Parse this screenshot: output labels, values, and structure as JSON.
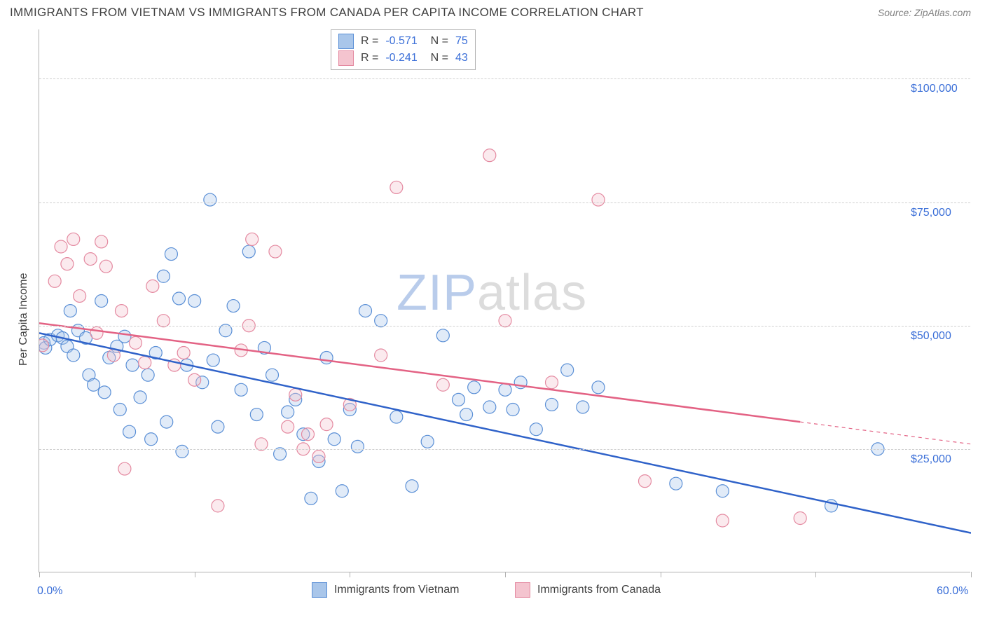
{
  "header": {
    "title": "IMMIGRANTS FROM VIETNAM VS IMMIGRANTS FROM CANADA PER CAPITA INCOME CORRELATION CHART",
    "source": "Source: ZipAtlas.com"
  },
  "chart": {
    "type": "scatter",
    "ylabel": "Per Capita Income",
    "xlim": [
      0,
      60
    ],
    "ylim": [
      0,
      110000
    ],
    "xtick_positions": [
      0,
      10,
      20,
      30,
      40,
      50,
      60
    ],
    "xtick_labels_shown": {
      "0": "0.0%",
      "60": "60.0%"
    },
    "ytick_positions": [
      25000,
      50000,
      75000,
      100000
    ],
    "ytick_labels": [
      "$25,000",
      "$50,000",
      "$75,000",
      "$100,000"
    ],
    "background_color": "#ffffff",
    "grid_color": "#d0d0d0",
    "axis_color": "#b0b0b0",
    "text_color": "#404040",
    "tick_label_color": "#3b6fd8",
    "marker_radius": 9,
    "marker_stroke_width": 1.2,
    "marker_fill_opacity": 0.35,
    "trend_line_width": 2.5,
    "watermark": {
      "text_a": "ZIP",
      "text_b": "atlas",
      "color_a": "#b9cceb",
      "color_b": "#dcdcdc",
      "fontsize": 72
    },
    "series": [
      {
        "name": "Immigrants from Vietnam",
        "color_fill": "#a9c6ea",
        "color_stroke": "#5a8fd6",
        "trend_color": "#2f62c9",
        "R": "-0.571",
        "N": "75",
        "trend": {
          "x1": 0,
          "y1": 48500,
          "x2": 60,
          "y2": 8000,
          "solid_until_x": 60
        },
        "points": [
          [
            0.3,
            46500
          ],
          [
            0.4,
            45500
          ],
          [
            0.7,
            47200
          ],
          [
            1.2,
            48000
          ],
          [
            1.5,
            47500
          ],
          [
            1.8,
            45800
          ],
          [
            2.0,
            53000
          ],
          [
            2.2,
            44000
          ],
          [
            2.5,
            49000
          ],
          [
            3.0,
            47500
          ],
          [
            3.2,
            40000
          ],
          [
            3.5,
            38000
          ],
          [
            4.0,
            55000
          ],
          [
            4.2,
            36500
          ],
          [
            4.5,
            43500
          ],
          [
            5.0,
            45800
          ],
          [
            5.2,
            33000
          ],
          [
            5.5,
            47800
          ],
          [
            5.8,
            28500
          ],
          [
            6.0,
            42000
          ],
          [
            6.5,
            35500
          ],
          [
            7.0,
            40000
          ],
          [
            7.2,
            27000
          ],
          [
            7.5,
            44500
          ],
          [
            8.0,
            60000
          ],
          [
            8.2,
            30500
          ],
          [
            8.5,
            64500
          ],
          [
            9.0,
            55500
          ],
          [
            9.2,
            24500
          ],
          [
            9.5,
            42000
          ],
          [
            10.0,
            55000
          ],
          [
            10.5,
            38500
          ],
          [
            11.0,
            75500
          ],
          [
            11.2,
            43000
          ],
          [
            11.5,
            29500
          ],
          [
            12.0,
            49000
          ],
          [
            12.5,
            54000
          ],
          [
            13.0,
            37000
          ],
          [
            13.5,
            65000
          ],
          [
            14.0,
            32000
          ],
          [
            14.5,
            45500
          ],
          [
            15.0,
            40000
          ],
          [
            15.5,
            24000
          ],
          [
            16.0,
            32500
          ],
          [
            16.5,
            35000
          ],
          [
            17.0,
            28000
          ],
          [
            17.5,
            15000
          ],
          [
            18.0,
            22500
          ],
          [
            18.5,
            43500
          ],
          [
            19.0,
            27000
          ],
          [
            19.5,
            16500
          ],
          [
            20.0,
            33000
          ],
          [
            20.5,
            25500
          ],
          [
            21.0,
            53000
          ],
          [
            22.0,
            51000
          ],
          [
            23.0,
            31500
          ],
          [
            24.0,
            17500
          ],
          [
            25.0,
            26500
          ],
          [
            26.0,
            48000
          ],
          [
            27.0,
            35000
          ],
          [
            27.5,
            32000
          ],
          [
            28.0,
            37500
          ],
          [
            29.0,
            33500
          ],
          [
            30.0,
            37000
          ],
          [
            30.5,
            33000
          ],
          [
            31.0,
            38500
          ],
          [
            32.0,
            29000
          ],
          [
            33.0,
            34000
          ],
          [
            34.0,
            41000
          ],
          [
            35.0,
            33500
          ],
          [
            36.0,
            37500
          ],
          [
            41.0,
            18000
          ],
          [
            44.0,
            16500
          ],
          [
            51.0,
            13500
          ],
          [
            54.0,
            25000
          ]
        ]
      },
      {
        "name": "Immigrants from Canada",
        "color_fill": "#f4c4cf",
        "color_stroke": "#e489a0",
        "trend_color": "#e36284",
        "R": "-0.241",
        "N": "43",
        "trend": {
          "x1": 0,
          "y1": 50500,
          "x2": 60,
          "y2": 26000,
          "solid_until_x": 49
        },
        "points": [
          [
            0.2,
            46000
          ],
          [
            1.0,
            59000
          ],
          [
            1.4,
            66000
          ],
          [
            1.8,
            62500
          ],
          [
            2.2,
            67500
          ],
          [
            2.6,
            56000
          ],
          [
            3.3,
            63500
          ],
          [
            3.7,
            48500
          ],
          [
            4.0,
            67000
          ],
          [
            4.3,
            62000
          ],
          [
            4.8,
            44000
          ],
          [
            5.3,
            53000
          ],
          [
            5.5,
            21000
          ],
          [
            6.2,
            46500
          ],
          [
            6.8,
            42500
          ],
          [
            7.3,
            58000
          ],
          [
            8.0,
            51000
          ],
          [
            8.7,
            42000
          ],
          [
            9.3,
            44500
          ],
          [
            10.0,
            39000
          ],
          [
            11.5,
            13500
          ],
          [
            13.0,
            45000
          ],
          [
            13.5,
            50000
          ],
          [
            13.7,
            67500
          ],
          [
            14.3,
            26000
          ],
          [
            15.2,
            65000
          ],
          [
            16.0,
            29500
          ],
          [
            16.5,
            36000
          ],
          [
            17.0,
            25000
          ],
          [
            17.3,
            28000
          ],
          [
            18.0,
            23500
          ],
          [
            18.5,
            30000
          ],
          [
            20.0,
            34000
          ],
          [
            22.0,
            44000
          ],
          [
            23.0,
            78000
          ],
          [
            26.0,
            38000
          ],
          [
            29.0,
            84500
          ],
          [
            30.0,
            51000
          ],
          [
            33.0,
            38500
          ],
          [
            36.0,
            75500
          ],
          [
            39.0,
            18500
          ],
          [
            44.0,
            10500
          ],
          [
            49.0,
            11000
          ]
        ]
      }
    ],
    "bottom_legend": [
      {
        "label": "Immigrants from Vietnam",
        "fill": "#a9c6ea",
        "stroke": "#5a8fd6"
      },
      {
        "label": "Immigrants from Canada",
        "fill": "#f4c4cf",
        "stroke": "#e489a0"
      }
    ]
  }
}
